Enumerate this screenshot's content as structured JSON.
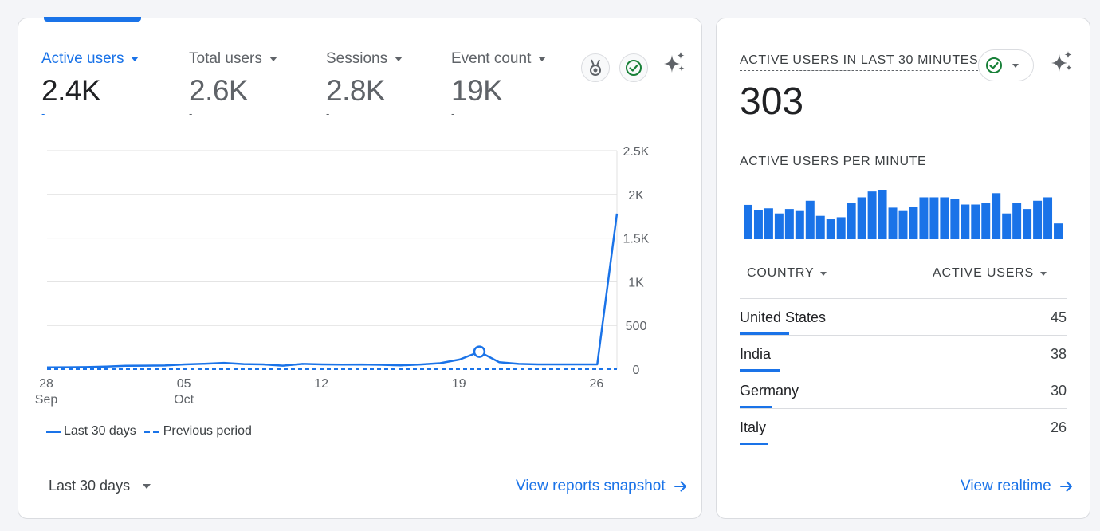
{
  "overview": {
    "metrics": [
      {
        "label": "Active users",
        "value": "2.4K",
        "change": "-"
      },
      {
        "label": "Total users",
        "value": "2.6K",
        "change": "-"
      },
      {
        "label": "Sessions",
        "value": "2.8K",
        "change": "-"
      },
      {
        "label": "Event count",
        "value": "19K",
        "change": "-"
      }
    ],
    "legend": {
      "current": "Last 30 days",
      "previous": "Previous period"
    },
    "date_range": "Last 30 days",
    "link": "View reports snapshot"
  },
  "chart_data": {
    "type": "line",
    "y_ticks": [
      "2.5K",
      "2K",
      "1.5K",
      "1K",
      "500",
      "0"
    ],
    "ylim": [
      0,
      2500
    ],
    "x_ticks": [
      {
        "day": "28",
        "month": "Sep",
        "x": 0
      },
      {
        "day": "05",
        "month": "Oct",
        "x": 7
      },
      {
        "day": "12",
        "month": "",
        "x": 14
      },
      {
        "day": "19",
        "month": "",
        "x": 21
      },
      {
        "day": "26",
        "month": "",
        "x": 28
      }
    ],
    "xlim": [
      0,
      29
    ],
    "series": [
      {
        "name": "Last 30 days",
        "style": "solid",
        "color": "#1a73e8",
        "x": [
          0,
          1,
          2,
          3,
          4,
          5,
          6,
          7,
          8,
          9,
          10,
          11,
          12,
          13,
          14,
          15,
          16,
          17,
          18,
          19,
          20,
          21,
          22,
          23,
          24,
          25,
          26,
          27,
          28,
          29
        ],
        "values": [
          20,
          22,
          24,
          30,
          38,
          40,
          42,
          55,
          62,
          72,
          58,
          55,
          40,
          60,
          55,
          52,
          54,
          50,
          44,
          54,
          68,
          110,
          200,
          80,
          60,
          55,
          55,
          55,
          55,
          1780
        ],
        "highlight_x": 22
      },
      {
        "name": "Previous period",
        "style": "dashed",
        "color": "#1a73e8",
        "x": [
          0,
          29
        ],
        "values": [
          0,
          0
        ]
      }
    ]
  },
  "realtime": {
    "title": "ACTIVE USERS IN LAST 30 MINUTES",
    "value": "303",
    "per_minute_title": "ACTIVE USERS PER MINUTE",
    "per_minute": [
      10,
      8.5,
      9,
      7.5,
      8.8,
      8.2,
      11.2,
      6.8,
      5.8,
      6.4,
      10.6,
      12.2,
      13.9,
      14.4,
      9.2,
      8.2,
      9.5,
      12.2,
      12.2,
      12.2,
      11.8,
      10.1,
      10.1,
      10.6,
      13.4,
      7.5,
      10.6,
      8.8,
      11.2,
      12.2,
      4.6
    ],
    "col_country": "COUNTRY",
    "col_users": "ACTIVE USERS",
    "rows": [
      {
        "country": "United States",
        "users": "45",
        "share": 0.15
      },
      {
        "country": "India",
        "users": "38",
        "share": 0.125
      },
      {
        "country": "Germany",
        "users": "30",
        "share": 0.1
      },
      {
        "country": "Italy",
        "users": "26",
        "share": 0.086
      }
    ],
    "link": "View realtime"
  }
}
